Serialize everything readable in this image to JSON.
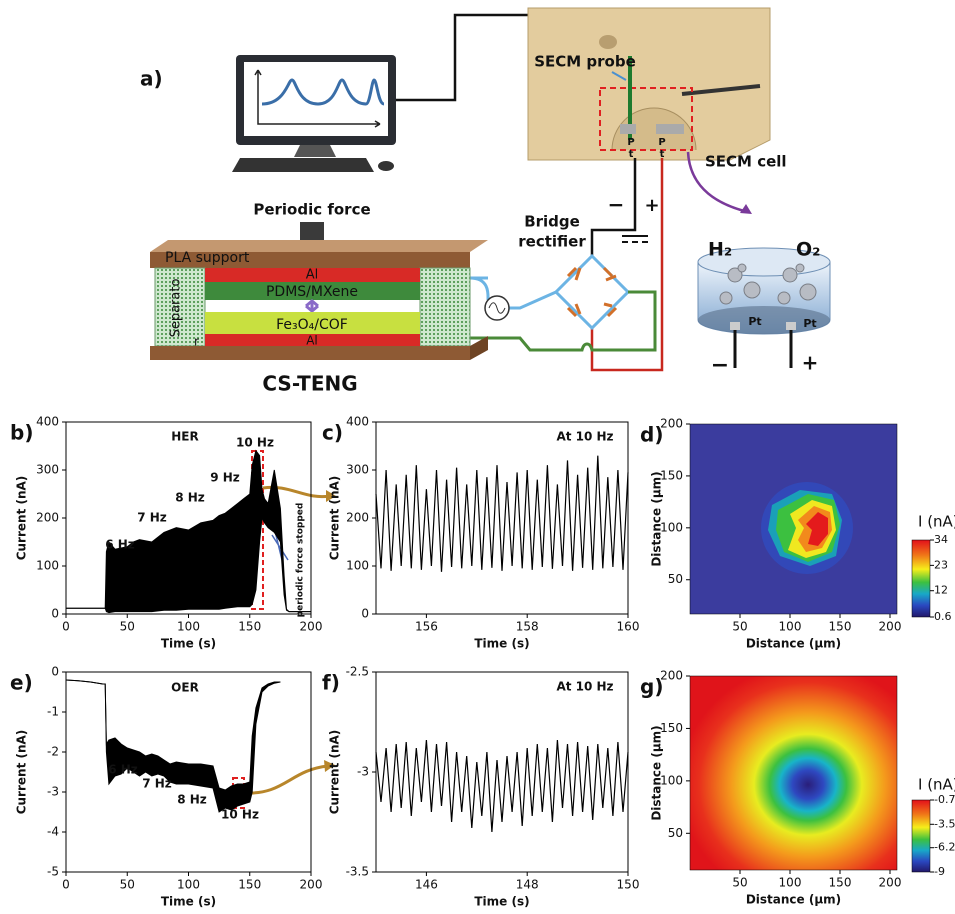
{
  "diagram": {
    "label": "a)",
    "secm_probe": "SECM probe",
    "secm_cell": "SECM cell",
    "probe_pt": [
      "P",
      "t",
      "P",
      "t"
    ],
    "periodic_force": "Periodic force",
    "pla_support": "PLA support",
    "layers": [
      "Al",
      "PDMS/MXene",
      "Fe₃O₄/COF",
      "Al"
    ],
    "separator": [
      "Separato",
      "r"
    ],
    "teng": "CS-TENG",
    "rectifier": [
      "Bridge",
      "rectifier"
    ],
    "signs": [
      "−",
      "+"
    ],
    "cell": {
      "h2": "H₂",
      "o2": "O₂",
      "electrodes": [
        "Pt",
        "Pt"
      ],
      "signs": [
        "−",
        "+"
      ]
    }
  },
  "chart_data": [
    {
      "type": "band",
      "panel": "b)",
      "xlabel": "Time (s)",
      "ylabel": "Current (nA)",
      "xlim": [
        0,
        200
      ],
      "ylim": [
        0,
        400
      ],
      "xticks": [
        0,
        50,
        100,
        150,
        200
      ],
      "yticks": [
        0,
        100,
        200,
        300,
        400
      ],
      "annotations": [
        "HER",
        "10 Hz",
        "9 Hz",
        "8 Hz",
        "7 Hz",
        "6 Hz",
        "periodic force stopped"
      ],
      "x": [
        0,
        30,
        32,
        33,
        35,
        40,
        50,
        55,
        60,
        70,
        80,
        90,
        100,
        110,
        120,
        125,
        130,
        140,
        145,
        150,
        152,
        155,
        158,
        160,
        162,
        165,
        170,
        175,
        178,
        180,
        182,
        185,
        200
      ],
      "series": [
        {
          "color": "#000000",
          "values": [
            12,
            12,
            12,
            130,
            150,
            135,
            140,
            150,
            155,
            150,
            170,
            180,
            175,
            190,
            195,
            205,
            210,
            230,
            240,
            250,
            310,
            340,
            330,
            260,
            240,
            230,
            300,
            220,
            80,
            10,
            5,
            5,
            5
          ]
        },
        {
          "color": "#000000",
          "values": [
            12,
            12,
            12,
            5,
            3,
            5,
            5,
            5,
            5,
            5,
            8,
            8,
            10,
            10,
            10,
            10,
            12,
            15,
            15,
            15,
            20,
            50,
            150,
            200,
            190,
            180,
            170,
            150,
            40,
            8,
            5,
            5,
            5
          ]
        }
      ]
    },
    {
      "type": "line",
      "panel": "c)",
      "xlabel": "Time (s)",
      "ylabel": "Current (nA)",
      "xlim": [
        155,
        160
      ],
      "ylim": [
        0,
        400
      ],
      "xticks": [
        156,
        158,
        160
      ],
      "yticks": [
        0,
        100,
        200,
        300,
        400
      ],
      "annotations": [
        "At 10 Hz"
      ],
      "x": [
        155,
        155.1,
        155.2,
        155.3,
        155.4,
        155.5,
        155.6,
        155.7,
        155.8,
        155.9,
        156,
        156.1,
        156.2,
        156.3,
        156.4,
        156.5,
        156.6,
        156.7,
        156.8,
        156.9,
        157,
        157.1,
        157.2,
        157.3,
        157.4,
        157.5,
        157.6,
        157.7,
        157.8,
        157.9,
        158,
        158.1,
        158.2,
        158.3,
        158.4,
        158.5,
        158.6,
        158.7,
        158.8,
        158.9,
        159,
        159.1,
        159.2,
        159.3,
        159.4,
        159.5,
        159.6,
        159.7,
        159.8,
        159.9,
        160
      ],
      "series": [
        {
          "color": "#000000",
          "values": [
            250,
            95,
            300,
            90,
            270,
            100,
            290,
            95,
            310,
            92,
            260,
            100,
            300,
            88,
            280,
            98,
            305,
            95,
            270,
            100,
            300,
            92,
            285,
            96,
            310,
            90,
            275,
            100,
            295,
            95,
            300,
            92,
            280,
            98,
            310,
            94,
            270,
            100,
            320,
            90,
            290,
            96,
            305,
            92,
            330,
            95,
            285,
            98,
            300,
            92,
            295
          ]
        }
      ]
    },
    {
      "type": "heatmap",
      "panel": "d)",
      "xlabel": "Distance (μm)",
      "ylabel": "Distance (μm)",
      "xlim": [
        0,
        207
      ],
      "ylim": [
        17,
        200
      ],
      "xticks": [
        50,
        100,
        150,
        200
      ],
      "yticks": [
        50,
        100,
        150,
        200
      ],
      "colorbar_label": "I (nA)",
      "clim": [
        0.6,
        34
      ],
      "cticks": [
        34,
        23,
        12,
        0.6
      ]
    },
    {
      "type": "band",
      "panel": "e)",
      "xlabel": "Time (s)",
      "ylabel": "Current (nA)",
      "xlim": [
        0,
        200
      ],
      "ylim": [
        -5,
        0
      ],
      "xticks": [
        0,
        50,
        100,
        150,
        200
      ],
      "yticks": [
        0,
        -1,
        -2,
        -3,
        -4,
        -5
      ],
      "annotations": [
        "OER",
        "6 Hz",
        "7 Hz",
        "8 Hz",
        "10 Hz"
      ],
      "x": [
        0,
        10,
        20,
        30,
        32,
        33,
        35,
        40,
        45,
        50,
        55,
        60,
        65,
        70,
        75,
        80,
        85,
        90,
        100,
        110,
        120,
        125,
        130,
        135,
        140,
        145,
        150,
        152,
        155,
        160,
        165,
        170,
        175
      ],
      "series": [
        {
          "color": "#000000",
          "values": [
            -0.2,
            -0.22,
            -0.25,
            -0.3,
            -0.3,
            -1.8,
            -1.7,
            -1.65,
            -1.8,
            -1.9,
            -1.95,
            -2.0,
            -2.1,
            -2.05,
            -2.1,
            -2.2,
            -2.3,
            -2.25,
            -2.3,
            -2.3,
            -2.35,
            -2.9,
            -2.95,
            -2.85,
            -2.8,
            -2.8,
            -2.75,
            -1.6,
            -0.9,
            -0.4,
            -0.3,
            -0.25,
            -0.25
          ]
        },
        {
          "color": "#000000",
          "values": [
            -0.2,
            -0.22,
            -0.25,
            -0.3,
            -0.3,
            -2.0,
            -2.8,
            -2.6,
            -2.55,
            -2.4,
            -2.5,
            -2.6,
            -2.5,
            -2.6,
            -2.55,
            -2.6,
            -2.75,
            -2.8,
            -2.8,
            -2.85,
            -2.9,
            -3.5,
            -3.4,
            -3.45,
            -3.35,
            -3.3,
            -3.25,
            -3.0,
            -1.3,
            -0.5,
            -0.35,
            -0.28,
            -0.25
          ]
        }
      ]
    },
    {
      "type": "line",
      "panel": "f)",
      "xlabel": "Time (s)",
      "ylabel": "Current (nA)",
      "xlim": [
        145,
        150
      ],
      "ylim": [
        -3.5,
        -2.5
      ],
      "xticks": [
        146,
        148,
        150
      ],
      "yticks": [
        -2.5,
        -3,
        -3.5
      ],
      "annotations": [
        "At 10 Hz"
      ],
      "x": [
        145,
        145.1,
        145.2,
        145.3,
        145.4,
        145.5,
        145.6,
        145.7,
        145.8,
        145.9,
        146,
        146.1,
        146.2,
        146.3,
        146.4,
        146.5,
        146.6,
        146.7,
        146.8,
        146.9,
        147,
        147.1,
        147.2,
        147.3,
        147.4,
        147.5,
        147.6,
        147.7,
        147.8,
        147.9,
        148,
        148.1,
        148.2,
        148.3,
        148.4,
        148.5,
        148.6,
        148.7,
        148.8,
        148.9,
        149,
        149.1,
        149.2,
        149.3,
        149.4,
        149.5,
        149.6,
        149.7,
        149.8,
        149.9,
        150
      ],
      "series": [
        {
          "color": "#000000",
          "values": [
            -2.9,
            -3.15,
            -2.88,
            -3.2,
            -2.86,
            -3.18,
            -2.85,
            -3.22,
            -2.88,
            -3.15,
            -2.84,
            -3.2,
            -2.86,
            -3.17,
            -2.85,
            -3.25,
            -2.9,
            -3.2,
            -2.92,
            -3.28,
            -2.95,
            -3.22,
            -2.9,
            -3.3,
            -2.94,
            -3.25,
            -2.92,
            -3.2,
            -2.9,
            -3.27,
            -2.88,
            -3.22,
            -2.86,
            -3.2,
            -2.88,
            -3.25,
            -2.84,
            -3.18,
            -2.86,
            -3.22,
            -2.85,
            -3.2,
            -2.87,
            -3.24,
            -2.86,
            -3.18,
            -2.88,
            -3.22,
            -2.85,
            -3.2,
            -2.9
          ]
        }
      ]
    },
    {
      "type": "heatmap",
      "panel": "g)",
      "xlabel": "Distance (μm)",
      "ylabel": "Distance (μm)",
      "xlim": [
        0,
        207
      ],
      "ylim": [
        15,
        200
      ],
      "xticks": [
        50,
        100,
        150,
        200
      ],
      "yticks": [
        50,
        100,
        150,
        200
      ],
      "colorbar_label": "I (nA)",
      "clim": [
        -9,
        -0.7
      ],
      "cticks": [
        -0.7,
        -3.5,
        -6.2,
        -9
      ]
    }
  ]
}
